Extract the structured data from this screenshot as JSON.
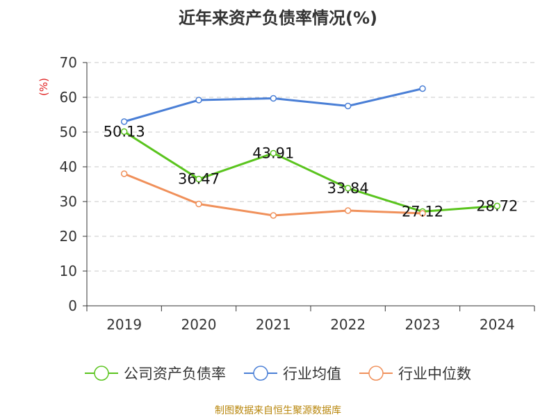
{
  "title": "近年来资产负债率情况(%)",
  "source": "制图数据来自恒生聚源数据库",
  "chart_data": {
    "type": "line",
    "title": "近年来资产负债率情况(%)",
    "ylabel": "(%)",
    "xlabel": "",
    "categories": [
      "2019",
      "2020",
      "2021",
      "2022",
      "2023",
      "2024"
    ],
    "ylim": [
      0,
      70
    ],
    "yticks": [
      0,
      10,
      20,
      30,
      40,
      50,
      60,
      70
    ],
    "grid": true,
    "legend_position": "bottom",
    "series": [
      {
        "name": "公司资产负债率",
        "color": "#5ac41e",
        "values": [
          50.13,
          36.47,
          43.91,
          33.84,
          27.12,
          28.72
        ],
        "labels": [
          "50.13",
          "36.47",
          "43.91",
          "33.84",
          "27.12",
          "28.72"
        ]
      },
      {
        "name": "行业均值",
        "color": "#4a7fd6",
        "values": [
          53.0,
          59.2,
          59.7,
          57.5,
          62.5,
          null
        ]
      },
      {
        "name": "行业中位数",
        "color": "#f0905a",
        "values": [
          38.0,
          29.3,
          26.0,
          27.4,
          26.6,
          null
        ]
      }
    ]
  }
}
